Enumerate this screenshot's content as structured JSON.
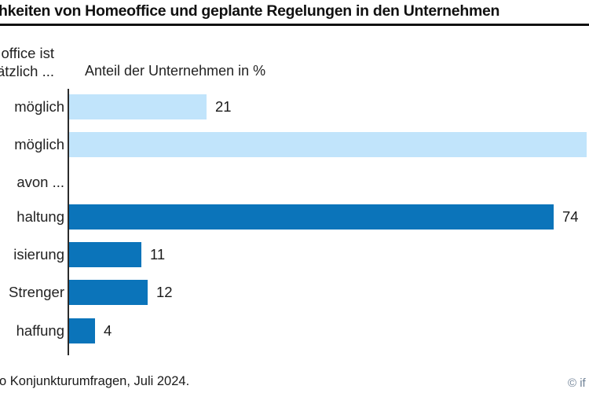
{
  "title": "hkeiten von Homeoffice und geplante Regelungen in den Unternehmen",
  "subtitle": "Anteil der Unternehmen in %",
  "axis_header": {
    "line1": "office ist",
    "line2": "ätzlich ..."
  },
  "source": "o Konjunkturumfragen, Juli 2024.",
  "copyright": "© if",
  "colors": {
    "light_blue": "#c1e4fb",
    "dark_blue": "#0b74ba",
    "title_rule": "#111111",
    "copyright_text": "#6f8196"
  },
  "chart_data": {
    "type": "bar",
    "orientation": "horizontal",
    "title": "hkeiten von Homeoffice und geplante Regelungen in den Unternehmen",
    "xlabel": "Anteil der Unternehmen in %",
    "xlim": [
      0,
      100
    ],
    "grid": false,
    "legend": "none",
    "note": "left category labels and title are cropped at the left image edge; second bar runs off the right edge, value label not visible (length implies ~79)",
    "rows": [
      {
        "label": "möglich",
        "value": 21,
        "value_label": "21",
        "color": "light"
      },
      {
        "label": "möglich",
        "value": 79,
        "value_label": "",
        "color": "light"
      },
      {
        "label": "avon ...",
        "value": null,
        "value_label": "",
        "color": null
      },
      {
        "label": "haltung",
        "value": 74,
        "value_label": "74",
        "color": "dark"
      },
      {
        "label": "isierung",
        "value": 11,
        "value_label": "11",
        "color": "dark"
      },
      {
        "label": "Strenger",
        "value": 12,
        "value_label": "12",
        "color": "dark"
      },
      {
        "label": "haffung",
        "value": 4,
        "value_label": "4",
        "color": "dark"
      }
    ]
  }
}
